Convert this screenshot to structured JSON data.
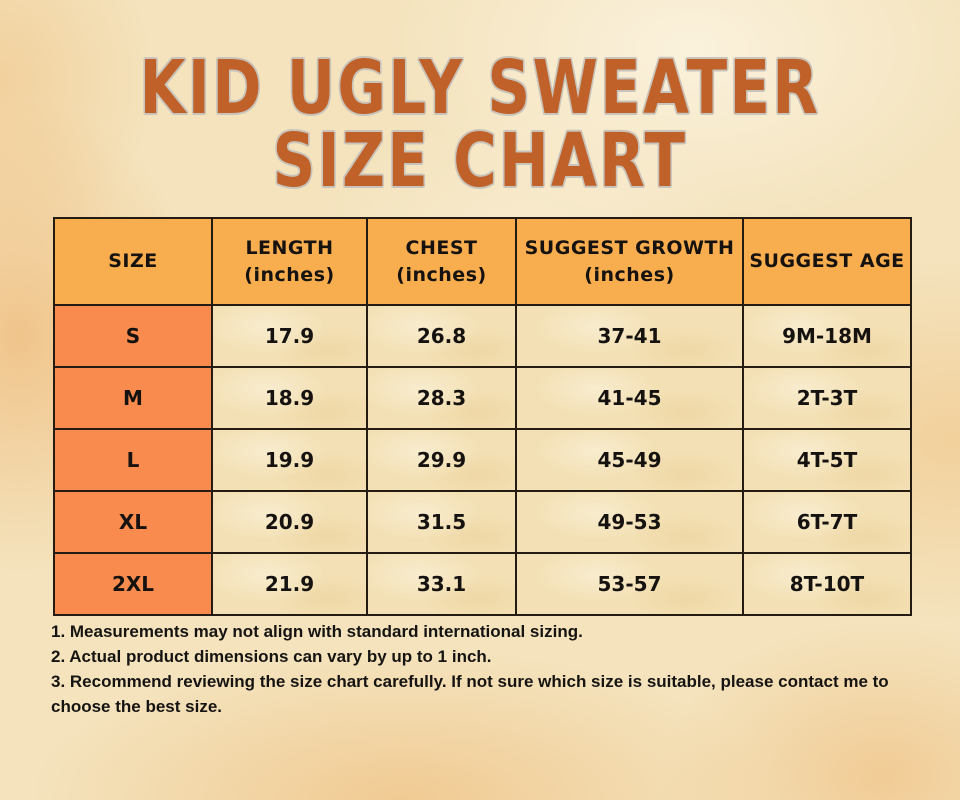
{
  "title": {
    "line1": "KID UGLY SWEATER",
    "line2": "SIZE CHART"
  },
  "colors": {
    "title_text": "#bf6128",
    "title_outline": "#c9c4bb",
    "header_bg": "#f8ae4e",
    "size_column_bg": "#f88b4d",
    "data_cell_bg": "#f3e0b4",
    "table_border": "#241c12",
    "background_base": "#f4e3bd",
    "body_text": "#151210"
  },
  "table": {
    "headers": [
      {
        "label": "SIZE",
        "sub": ""
      },
      {
        "label": "LENGTH",
        "sub": "(inches)"
      },
      {
        "label": "CHEST",
        "sub": "(inches)"
      },
      {
        "label": "SUGGEST GROWTH",
        "sub": "(inches)"
      },
      {
        "label": "SUGGEST AGE",
        "sub": ""
      }
    ],
    "rows": [
      {
        "size": "S",
        "length": "17.9",
        "chest": "26.8",
        "growth": "37-41",
        "age": "9M-18M"
      },
      {
        "size": "M",
        "length": "18.9",
        "chest": "28.3",
        "growth": "41-45",
        "age": "2T-3T"
      },
      {
        "size": "L",
        "length": "19.9",
        "chest": "29.9",
        "growth": "45-49",
        "age": "4T-5T"
      },
      {
        "size": "XL",
        "length": "20.9",
        "chest": "31.5",
        "growth": "49-53",
        "age": "6T-7T"
      },
      {
        "size": "2XL",
        "length": "21.9",
        "chest": "33.1",
        "growth": "53-57",
        "age": "8T-10T"
      }
    ]
  },
  "chart_data": {
    "type": "table",
    "title": "KID UGLY SWEATER SIZE CHART",
    "columns": [
      "SIZE",
      "LENGTH (inches)",
      "CHEST (inches)",
      "SUGGEST GROWTH (inches)",
      "SUGGEST AGE"
    ],
    "rows": [
      [
        "S",
        "17.9",
        "26.8",
        "37-41",
        "9M-18M"
      ],
      [
        "M",
        "18.9",
        "28.3",
        "41-45",
        "2T-3T"
      ],
      [
        "L",
        "19.9",
        "29.9",
        "45-49",
        "4T-5T"
      ],
      [
        "XL",
        "20.9",
        "31.5",
        "49-53",
        "6T-7T"
      ],
      [
        "2XL",
        "21.9",
        "33.1",
        "53-57",
        "8T-10T"
      ]
    ]
  },
  "notes": {
    "note1": "1. Measurements may not align with standard international sizing.",
    "note2": "2. Actual product dimensions can vary by up to 1 inch.",
    "note3": "3. Recommend reviewing the size chart carefully. If not sure which size is suitable, please contact me to choose the best size."
  }
}
